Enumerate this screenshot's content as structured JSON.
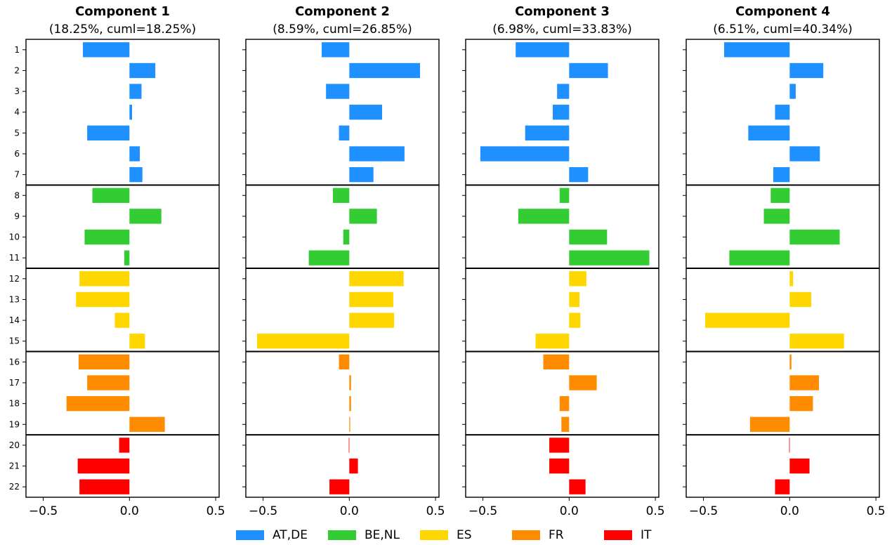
{
  "chart_data": {
    "type": "bar",
    "orientation": "horizontal",
    "categories": [
      "1",
      "2",
      "3",
      "4",
      "5",
      "6",
      "7",
      "8",
      "9",
      "10",
      "11",
      "12",
      "13",
      "14",
      "15",
      "16",
      "17",
      "18",
      "19",
      "20",
      "21",
      "22"
    ],
    "xlim": [
      -0.6,
      0.52
    ],
    "xticks": [
      "−0.5",
      "0.0",
      "0.5"
    ],
    "xtick_values": [
      -0.5,
      0.0,
      0.5
    ],
    "legend": {
      "placement": "bottom-center",
      "entries": [
        {
          "label": "AT,DE",
          "color": "#1f90ff"
        },
        {
          "label": "BE,NL",
          "color": "#33cc33"
        },
        {
          "label": "ES",
          "color": "#ffd700"
        },
        {
          "label": "FR",
          "color": "#ff8c00"
        },
        {
          "label": "IT",
          "color": "#ff0000"
        }
      ]
    },
    "groups": [
      {
        "label": "AT,DE",
        "items": [
          "1",
          "2",
          "3",
          "4",
          "5",
          "6",
          "7"
        ]
      },
      {
        "label": "BE,NL",
        "items": [
          "8",
          "9",
          "10",
          "11"
        ]
      },
      {
        "label": "ES",
        "items": [
          "12",
          "13",
          "14",
          "15"
        ]
      },
      {
        "label": "FR",
        "items": [
          "16",
          "17",
          "18",
          "19"
        ]
      },
      {
        "label": "IT",
        "items": [
          "20",
          "21",
          "22"
        ]
      }
    ],
    "panels": [
      {
        "title": "Component 1",
        "subtitle": "(18.25%, cuml=18.25%)",
        "values": [
          -0.27,
          0.15,
          0.07,
          0.015,
          -0.245,
          0.06,
          0.075,
          -0.215,
          0.185,
          -0.26,
          -0.03,
          -0.29,
          -0.31,
          -0.085,
          0.09,
          -0.295,
          -0.245,
          -0.365,
          0.205,
          -0.06,
          -0.3,
          -0.29
        ]
      },
      {
        "title": "Component 2",
        "subtitle": "(8.59%, cuml=26.85%)",
        "values": [
          -0.16,
          0.41,
          -0.135,
          0.19,
          -0.06,
          0.32,
          0.14,
          -0.095,
          0.16,
          -0.035,
          -0.235,
          0.315,
          0.255,
          0.26,
          -0.535,
          -0.06,
          0.01,
          0.01,
          0.005,
          -0.003,
          0.05,
          -0.115
        ]
      },
      {
        "title": "Component 3",
        "subtitle": "(6.98%, cuml=33.83%)",
        "values": [
          -0.31,
          0.225,
          -0.07,
          -0.095,
          -0.255,
          -0.515,
          0.11,
          -0.055,
          -0.295,
          0.22,
          0.465,
          0.1,
          0.06,
          0.065,
          -0.195,
          -0.15,
          0.16,
          -0.055,
          -0.045,
          -0.115,
          -0.115,
          0.095
        ]
      },
      {
        "title": "Component 4",
        "subtitle": "(6.51%, cuml=40.34%)",
        "values": [
          -0.38,
          0.195,
          0.035,
          -0.085,
          -0.24,
          0.175,
          -0.095,
          -0.11,
          -0.15,
          0.29,
          -0.35,
          0.02,
          0.125,
          -0.49,
          0.315,
          0.01,
          0.17,
          0.135,
          -0.23,
          -0.003,
          0.115,
          -0.085
        ]
      }
    ]
  }
}
